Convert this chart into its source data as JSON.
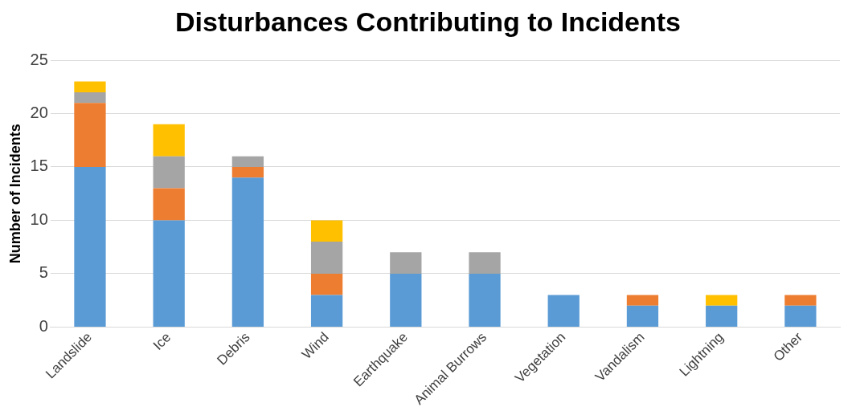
{
  "chart_data": {
    "type": "bar",
    "title": "Disturbances Contributing to Incidents",
    "ylabel": "Number of Incidents",
    "categories": [
      "Landslide",
      "Ice",
      "Debris",
      "Wind",
      "Earthquake",
      "Animal Burrows",
      "Vegetation",
      "Vandalism",
      "Lightning",
      "Other"
    ],
    "series": [
      {
        "color": "#5b9bd5",
        "values": [
          15,
          10,
          14,
          3,
          5,
          5,
          3,
          2,
          2,
          2
        ]
      },
      {
        "color": "#ed7d31",
        "values": [
          6,
          3,
          1,
          2,
          0,
          0,
          0,
          1,
          0,
          1
        ]
      },
      {
        "color": "#a5a5a5",
        "values": [
          1,
          3,
          1,
          3,
          2,
          2,
          0,
          0,
          0,
          0
        ]
      },
      {
        "color": "#ffc000",
        "values": [
          1,
          3,
          0,
          2,
          0,
          0,
          0,
          0,
          1,
          0
        ]
      }
    ],
    "stacked": true,
    "ylim": [
      0,
      25
    ],
    "yticks": [
      0,
      5,
      10,
      15,
      20,
      25
    ],
    "grid": "y",
    "legend": false
  }
}
